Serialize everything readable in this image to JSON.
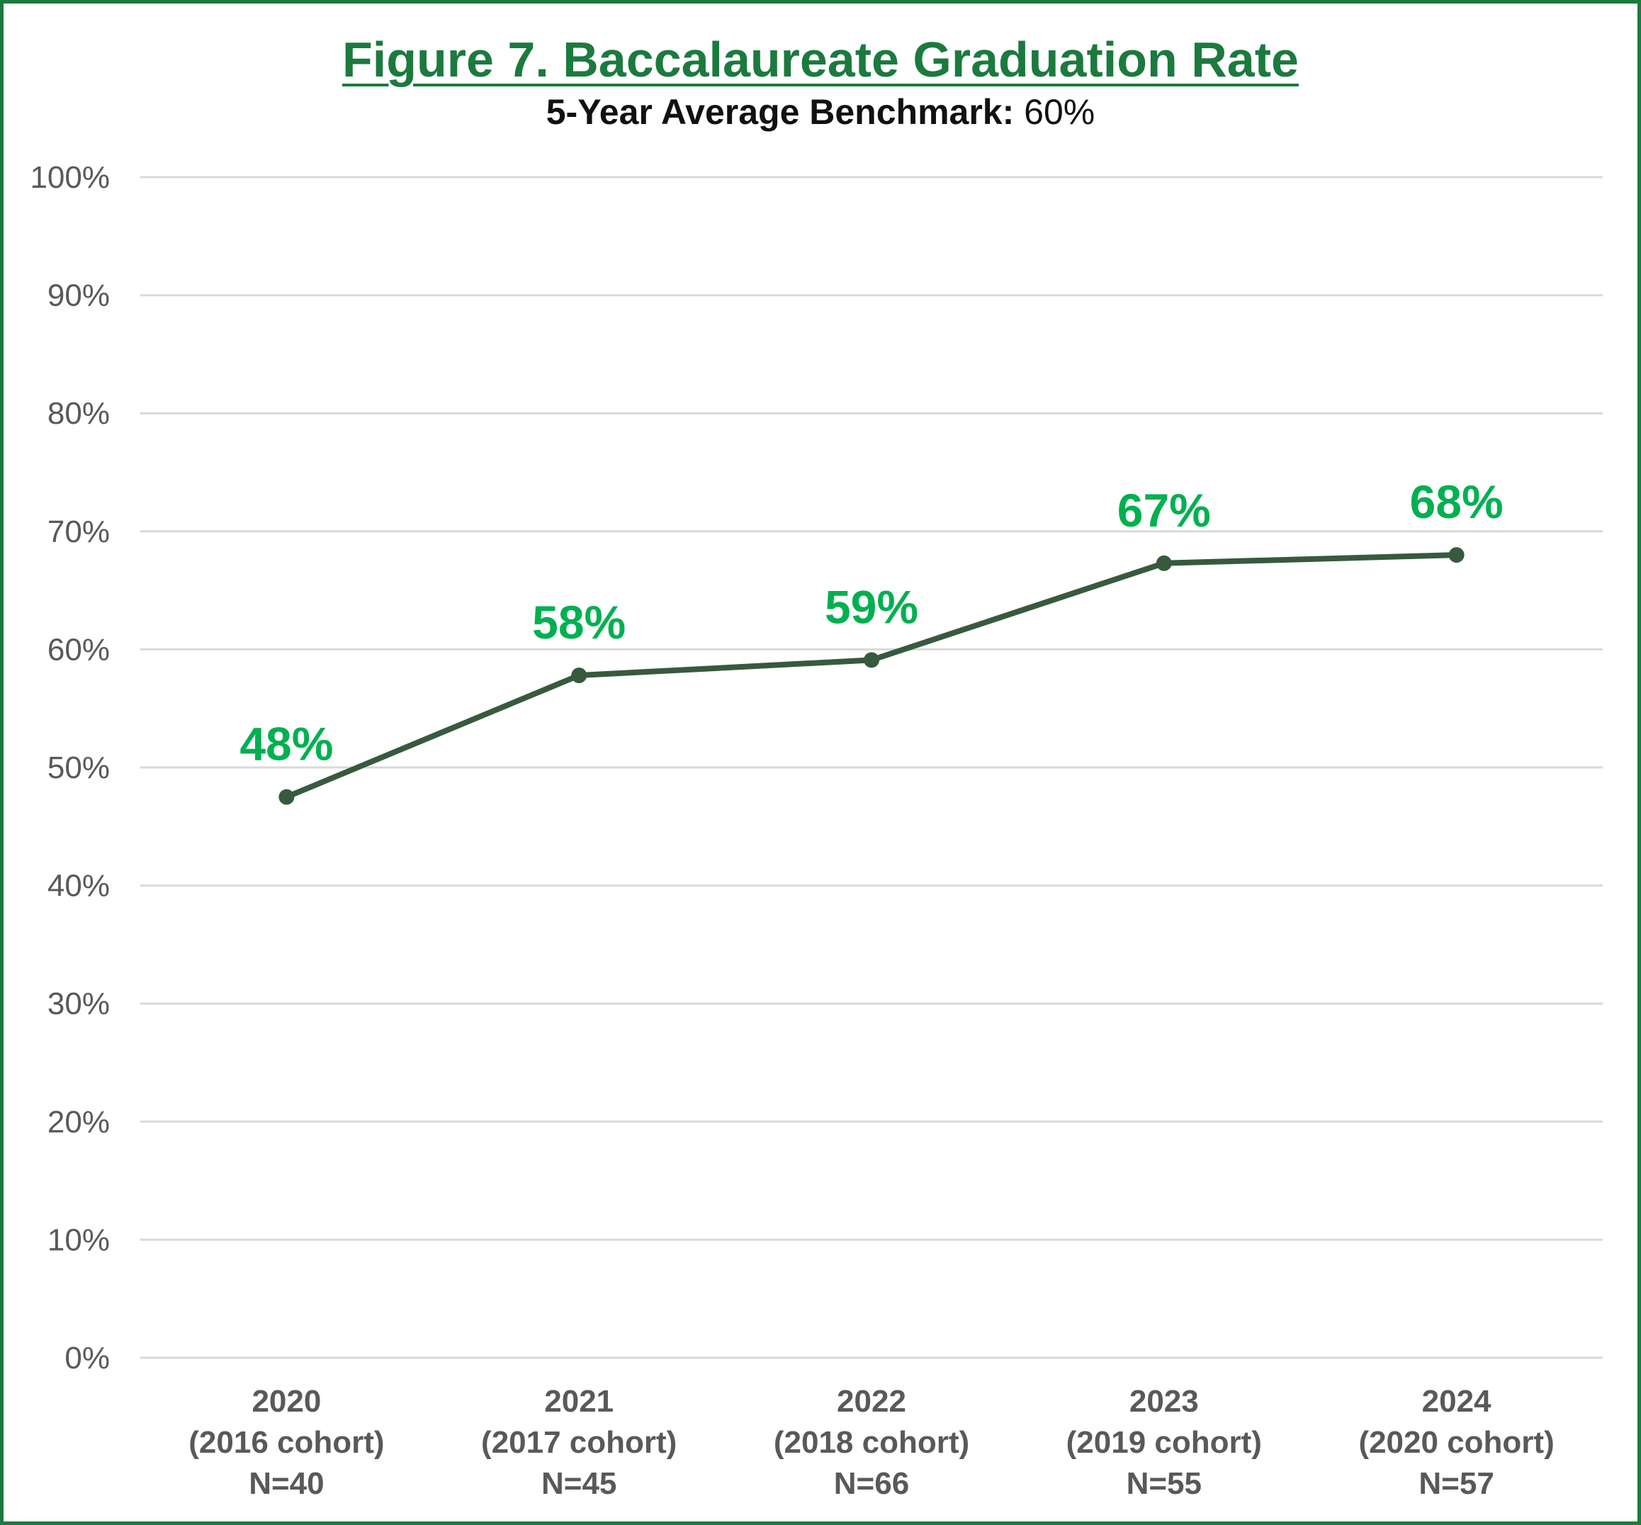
{
  "colors": {
    "frame": "#1b7a3e",
    "title": "#1b7a3e",
    "line": "#375a3f",
    "data_label": "#00b050",
    "gridline": "#d9d9d9",
    "tick_text": "#595959"
  },
  "chart_data": {
    "type": "line",
    "title": "Figure 7. Baccalaureate Graduation Rate",
    "subtitle_label": "5-Year Average Benchmark:",
    "subtitle_value": "60%",
    "xlabel": "",
    "ylabel": "",
    "ylim": [
      0,
      100
    ],
    "y_ticks": [
      "0%",
      "10%",
      "20%",
      "30%",
      "40%",
      "50%",
      "60%",
      "70%",
      "80%",
      "90%",
      "100%"
    ],
    "grid": true,
    "legend": "none",
    "categories": [
      {
        "year": "2020",
        "cohort": "(2016 cohort)",
        "n": "N=40"
      },
      {
        "year": "2021",
        "cohort": "(2017 cohort)",
        "n": "N=45"
      },
      {
        "year": "2022",
        "cohort": "(2018 cohort)",
        "n": "N=66"
      },
      {
        "year": "2023",
        "cohort": "(2019 cohort)",
        "n": "N=55"
      },
      {
        "year": "2024",
        "cohort": "(2020 cohort)",
        "n": "N=57"
      }
    ],
    "series": [
      {
        "values": [
          47.5,
          57.8,
          59.1,
          67.3,
          68.0
        ],
        "labels": [
          "48%",
          "58%",
          "59%",
          "67%",
          "68%"
        ]
      }
    ]
  }
}
